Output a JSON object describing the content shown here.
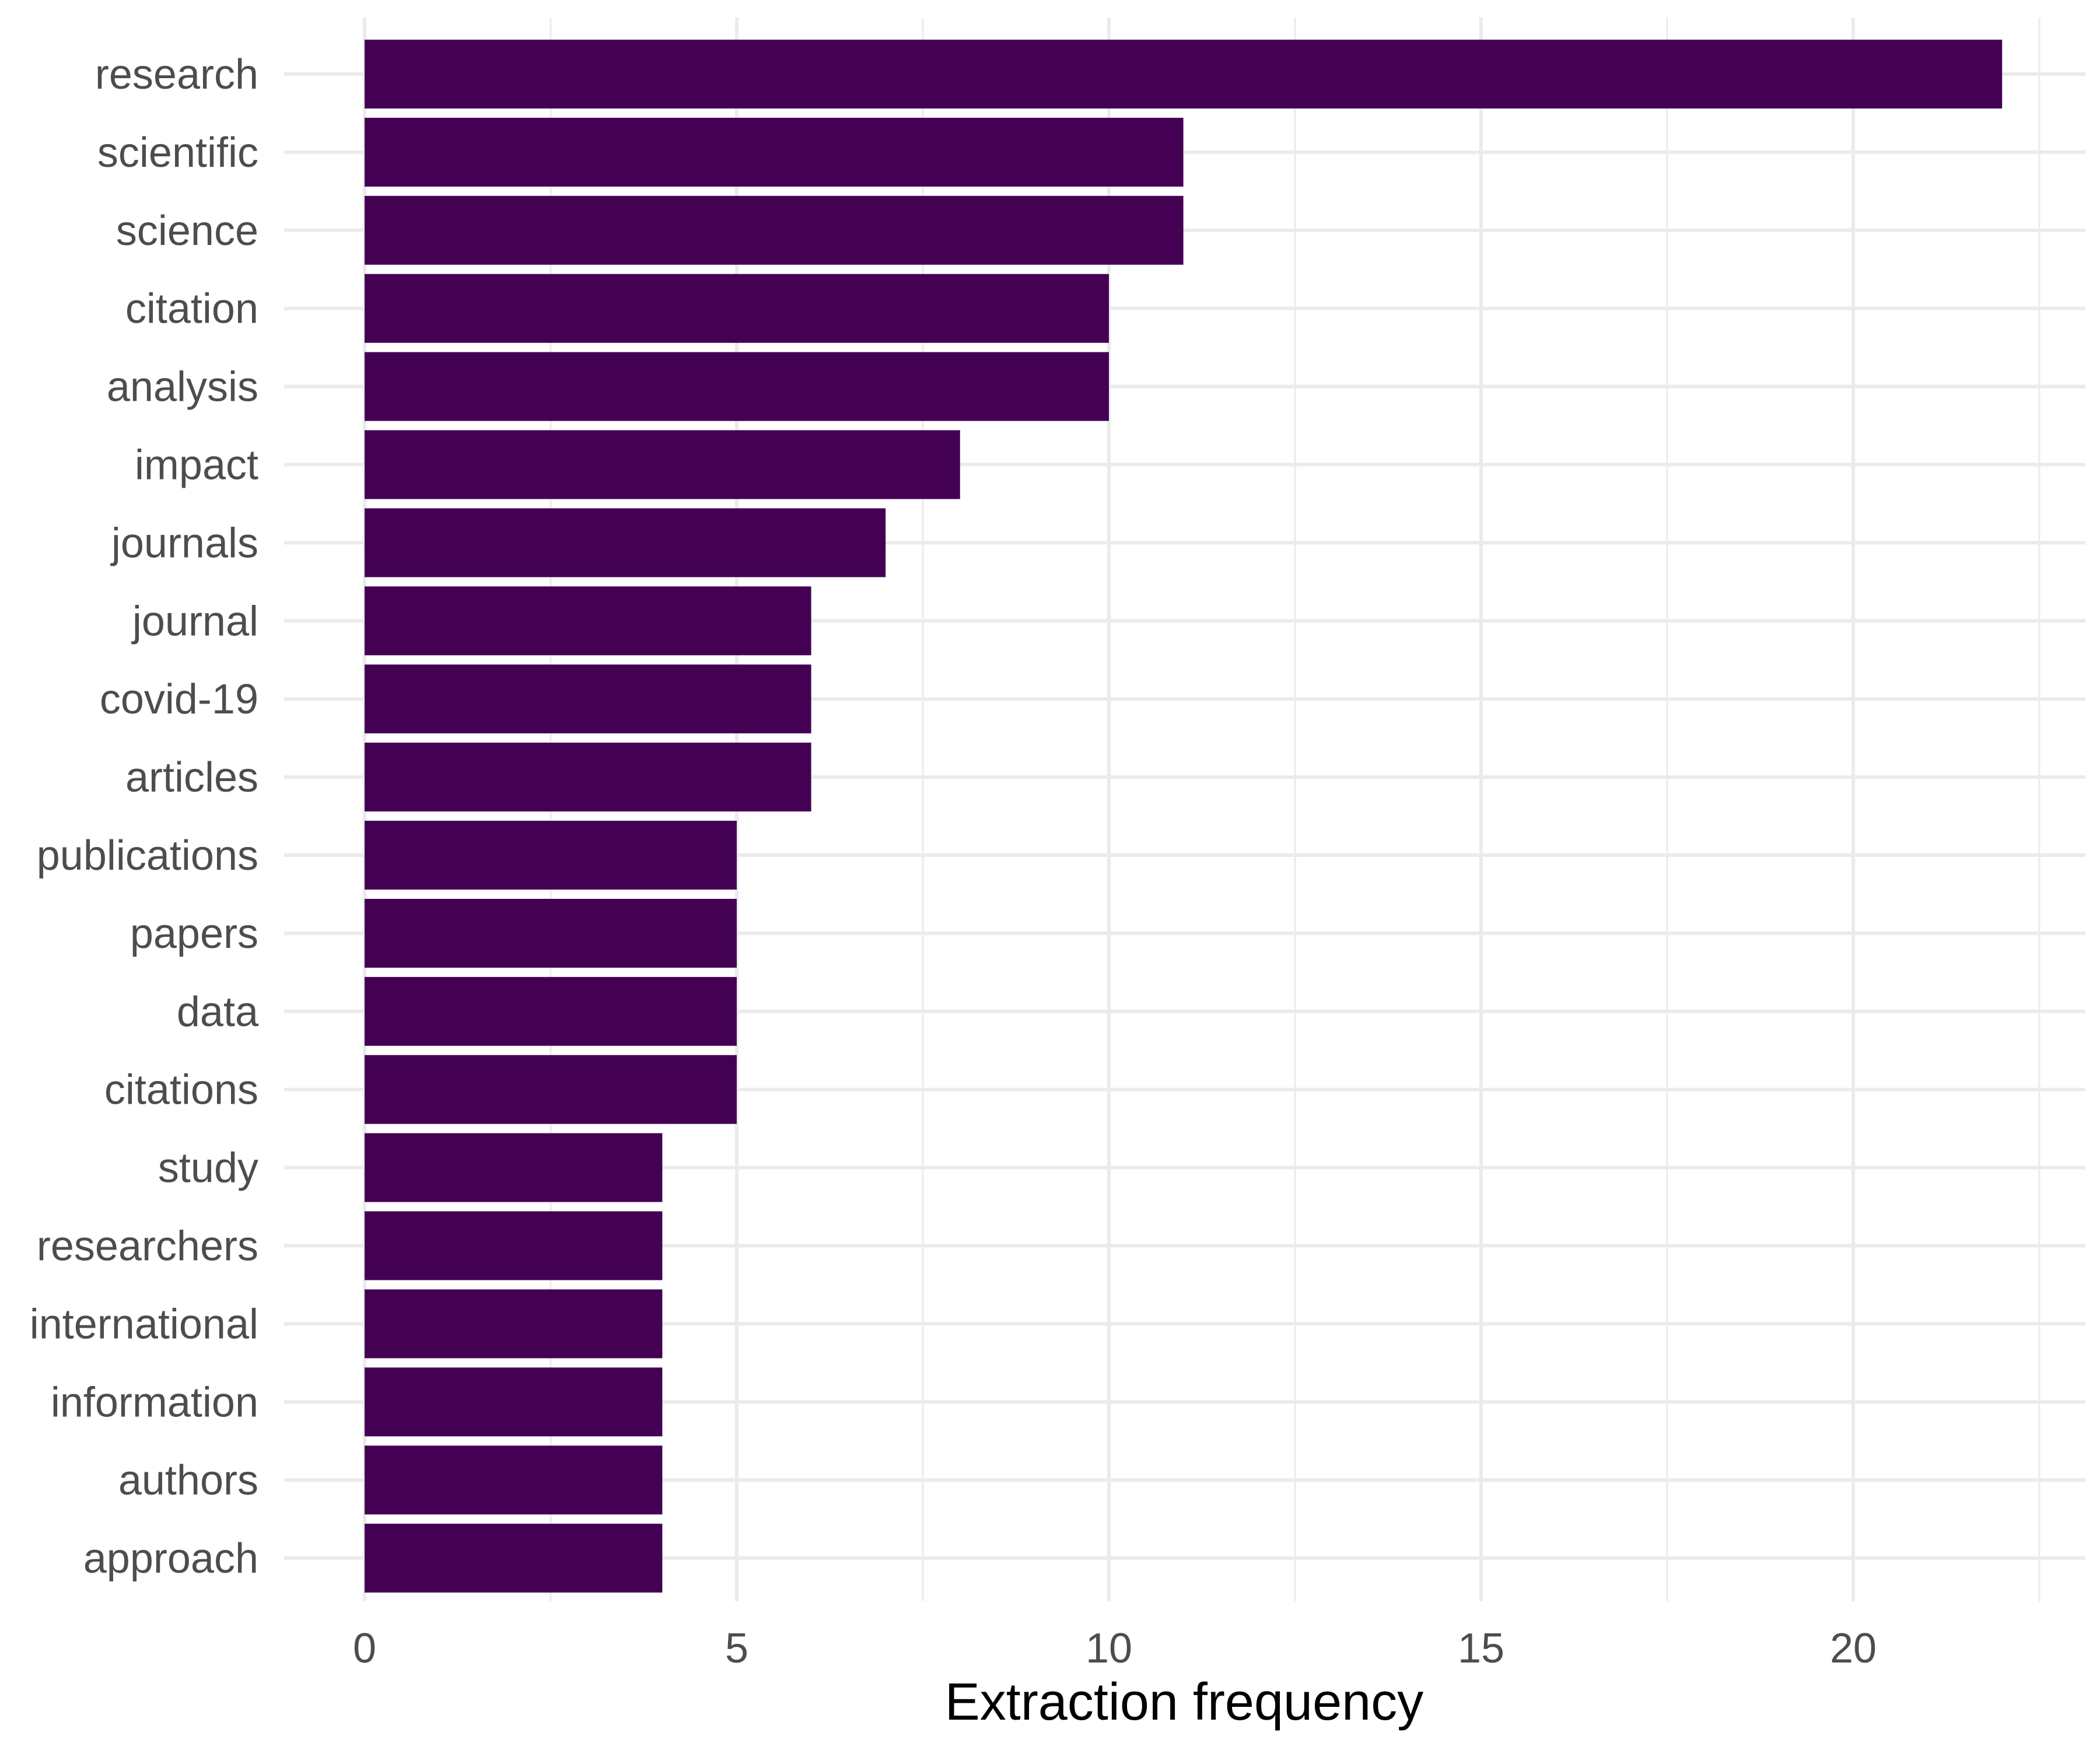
{
  "chart_data": {
    "type": "bar",
    "orientation": "horizontal",
    "categories": [
      "research",
      "scientific",
      "science",
      "citation",
      "analysis",
      "impact",
      "journals",
      "journal",
      "covid-19",
      "articles",
      "publications",
      "papers",
      "data",
      "citations",
      "study",
      "researchers",
      "international",
      "information",
      "authors",
      "approach"
    ],
    "values": [
      22,
      11,
      11,
      10,
      10,
      8,
      7,
      6,
      6,
      6,
      5,
      5,
      5,
      5,
      4,
      4,
      4,
      4,
      4,
      4
    ],
    "title": "",
    "xlabel": "Extraction frequency",
    "ylabel": "",
    "xlim": [
      0,
      22.5
    ],
    "xticks": [
      0,
      5,
      10,
      15,
      20
    ],
    "grid": true,
    "legend": "none",
    "bar_color": "#440154",
    "grid_color": "#ebebeb",
    "tick_label_color": "#4d4d4d"
  }
}
